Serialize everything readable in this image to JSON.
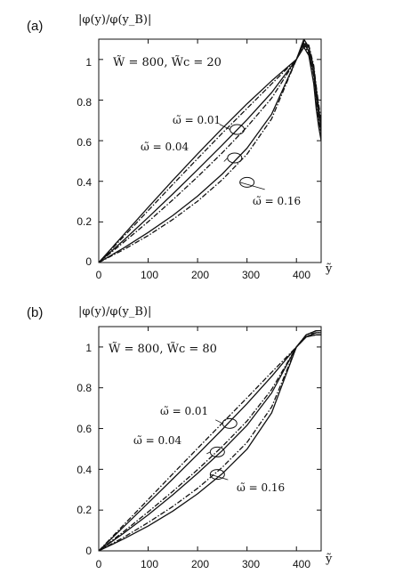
{
  "chart_data": [
    {
      "type": "line",
      "panel_label": "(a)",
      "ylabel": "|φ(y)/φ(y_B)|",
      "xlabel": "ỹ",
      "params": "W̃ = 800, W̃c = 20",
      "xlim": [
        0,
        450
      ],
      "ylim": [
        0,
        1.1
      ],
      "xticks": [
        "0",
        "100",
        "200",
        "300",
        "400"
      ],
      "yticks": [
        "0",
        "0.2",
        "0.4",
        "0.6",
        "0.8",
        "1"
      ],
      "annotations": [
        {
          "label": "ω̃ = 0.01",
          "x": 280,
          "y": 0.655
        },
        {
          "label": "ω̃ = 0.04",
          "x": 275,
          "y": 0.515
        },
        {
          "label": "ω̃ = 0.16",
          "x": 300,
          "y": 0.395
        }
      ],
      "series": [
        {
          "style": "solid",
          "x": [
            0,
            50,
            100,
            150,
            200,
            250,
            300,
            350,
            400,
            415,
            425,
            435,
            440,
            445,
            450
          ],
          "y": [
            0,
            0.136,
            0.272,
            0.405,
            0.535,
            0.661,
            0.782,
            0.895,
            1.0,
            1.06,
            1.02,
            0.88,
            0.76,
            0.67,
            0.6
          ]
        },
        {
          "style": "dashdot",
          "x": [
            0,
            50,
            100,
            150,
            200,
            250,
            300,
            350,
            400,
            415,
            425,
            435,
            440,
            445,
            450
          ],
          "y": [
            0,
            0.127,
            0.256,
            0.385,
            0.512,
            0.637,
            0.759,
            0.88,
            1.0,
            1.07,
            1.03,
            0.92,
            0.8,
            0.7,
            0.63
          ]
        },
        {
          "style": "solid",
          "x": [
            0,
            50,
            100,
            150,
            200,
            250,
            300,
            350,
            400,
            415,
            425,
            435,
            440,
            445,
            450
          ],
          "y": [
            0,
            0.109,
            0.222,
            0.338,
            0.457,
            0.579,
            0.704,
            0.837,
            1.0,
            1.08,
            1.04,
            0.93,
            0.82,
            0.72,
            0.64
          ]
        },
        {
          "style": "dashdot",
          "x": [
            0,
            50,
            100,
            150,
            200,
            250,
            300,
            350,
            400,
            415,
            425,
            435,
            440,
            445,
            450
          ],
          "y": [
            0,
            0.099,
            0.201,
            0.309,
            0.422,
            0.541,
            0.668,
            0.81,
            1.0,
            1.09,
            1.05,
            0.95,
            0.84,
            0.74,
            0.66
          ]
        },
        {
          "style": "solid",
          "x": [
            0,
            50,
            100,
            150,
            200,
            250,
            300,
            350,
            400,
            415,
            425,
            435,
            440,
            445,
            450
          ],
          "y": [
            0,
            0.071,
            0.148,
            0.232,
            0.327,
            0.436,
            0.563,
            0.731,
            1.0,
            1.1,
            1.06,
            0.96,
            0.86,
            0.76,
            0.68
          ]
        },
        {
          "style": "dashdot",
          "x": [
            0,
            50,
            100,
            150,
            200,
            250,
            300,
            350,
            400,
            415,
            425,
            435,
            440,
            445,
            450
          ],
          "y": [
            0,
            0.063,
            0.133,
            0.212,
            0.302,
            0.408,
            0.534,
            0.708,
            1.0,
            1.09,
            1.07,
            0.97,
            0.87,
            0.78,
            0.7
          ]
        }
      ]
    },
    {
      "type": "line",
      "panel_label": "(b)",
      "ylabel": "|φ(y)/φ(y_B)|",
      "xlabel": "ỹ",
      "params": "W̃ = 800, W̃c = 80",
      "xlim": [
        0,
        450
      ],
      "ylim": [
        0,
        1.1
      ],
      "xticks": [
        "0",
        "100",
        "200",
        "300",
        "400"
      ],
      "yticks": [
        "0",
        "0.2",
        "0.4",
        "0.6",
        "0.8",
        "1"
      ],
      "annotations": [
        {
          "label": "ω̃ = 0.01",
          "x": 265,
          "y": 0.625
        },
        {
          "label": "ω̃ = 0.04",
          "x": 240,
          "y": 0.485
        },
        {
          "label": "ω̃ = 0.16",
          "x": 240,
          "y": 0.375
        }
      ],
      "series": [
        {
          "style": "dashdot",
          "x": [
            0,
            50,
            100,
            150,
            200,
            250,
            300,
            350,
            400,
            420,
            440,
            450
          ],
          "y": [
            0,
            0.126,
            0.252,
            0.378,
            0.503,
            0.627,
            0.751,
            0.876,
            1.0,
            1.06,
            1.08,
            1.08
          ]
        },
        {
          "style": "solid",
          "x": [
            0,
            50,
            100,
            150,
            200,
            250,
            300,
            350,
            400,
            420,
            440,
            450
          ],
          "y": [
            0,
            0.117,
            0.235,
            0.353,
            0.473,
            0.596,
            0.722,
            0.856,
            1.0,
            1.06,
            1.08,
            1.08
          ]
        },
        {
          "style": "dashdot",
          "x": [
            0,
            50,
            100,
            150,
            200,
            250,
            300,
            350,
            400,
            420,
            440,
            450
          ],
          "y": [
            0,
            0.094,
            0.191,
            0.292,
            0.398,
            0.512,
            0.637,
            0.792,
            1.0,
            1.06,
            1.07,
            1.07
          ]
        },
        {
          "style": "solid",
          "x": [
            0,
            50,
            100,
            150,
            200,
            250,
            300,
            350,
            400,
            420,
            440,
            450
          ],
          "y": [
            0,
            0.086,
            0.177,
            0.275,
            0.38,
            0.492,
            0.616,
            0.775,
            1.0,
            1.05,
            1.07,
            1.07
          ]
        },
        {
          "style": "dashdot",
          "x": [
            0,
            50,
            100,
            150,
            200,
            250,
            300,
            350,
            400,
            420,
            440,
            450
          ],
          "y": [
            0,
            0.066,
            0.139,
            0.218,
            0.307,
            0.41,
            0.532,
            0.706,
            1.0,
            1.05,
            1.06,
            1.06
          ]
        },
        {
          "style": "solid",
          "x": [
            0,
            50,
            100,
            150,
            200,
            250,
            300,
            350,
            400,
            420,
            440,
            450
          ],
          "y": [
            0,
            0.058,
            0.122,
            0.195,
            0.28,
            0.379,
            0.499,
            0.677,
            1.0,
            1.05,
            1.06,
            1.06
          ]
        }
      ]
    }
  ]
}
